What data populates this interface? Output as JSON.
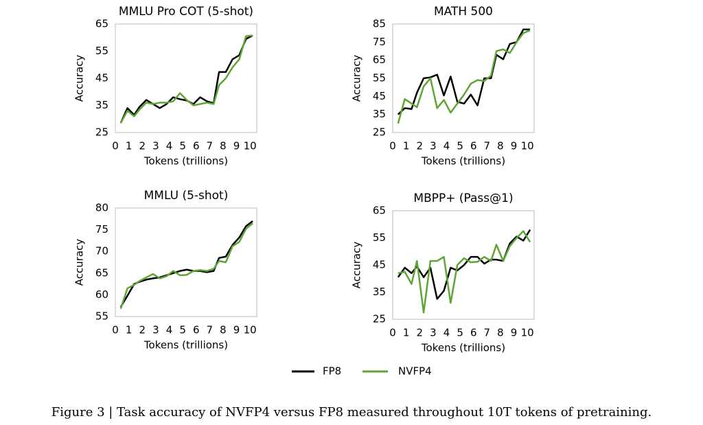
{
  "chart_data": [
    {
      "type": "line",
      "title": "MMLU Pro COT (5-shot)",
      "xlabel": "Tokens (trillions)",
      "ylabel": "Accuracy",
      "x": [
        0.4,
        0.9,
        1.4,
        1.8,
        2.3,
        2.8,
        3.3,
        3.8,
        4.3,
        4.8,
        5.3,
        5.8,
        6.3,
        6.8,
        7.3,
        7.7,
        8.2,
        8.7,
        9.2,
        9.7,
        10.2
      ],
      "series": [
        {
          "values": [
            28.5,
            34,
            31.5,
            34.5,
            37,
            35.5,
            34,
            35.5,
            38,
            37.3,
            36.8,
            35.5,
            38,
            36.5,
            35.8,
            47.3,
            47.3,
            52,
            53.5,
            59.5,
            60.8
          ]
        },
        {
          "values": [
            28.5,
            33,
            31,
            33.5,
            36,
            35.5,
            36,
            36,
            36.5,
            39.5,
            37,
            35,
            35.5,
            36,
            35.5,
            42.5,
            45,
            49,
            52,
            60.5,
            60.8
          ]
        }
      ],
      "xlim": [
        0,
        10.5
      ],
      "xticks": [
        0,
        1,
        2,
        3,
        4,
        5,
        6,
        7,
        8,
        9,
        10
      ],
      "ylim": [
        25,
        65
      ],
      "yticks": [
        25,
        35,
        45,
        55,
        65
      ]
    },
    {
      "type": "line",
      "title": "MATH 500",
      "xlabel": "Tokens (trillions)",
      "ylabel": "Accuracy",
      "x": [
        0.4,
        0.9,
        1.4,
        1.8,
        2.3,
        2.8,
        3.3,
        3.8,
        4.3,
        4.8,
        5.3,
        5.8,
        6.3,
        6.8,
        7.3,
        7.7,
        8.2,
        8.7,
        9.2,
        9.7,
        10.2
      ],
      "series": [
        {
          "values": [
            35,
            38.5,
            38,
            47,
            55,
            55.5,
            57,
            45.5,
            56,
            42,
            41,
            46,
            40,
            55,
            55,
            68,
            65.5,
            74,
            75,
            82,
            82
          ]
        },
        {
          "values": [
            30,
            43.5,
            41,
            39,
            50.5,
            55,
            38.5,
            43,
            36,
            41,
            46,
            52,
            54,
            53.5,
            56.5,
            70,
            71,
            69,
            75,
            80,
            81.5
          ]
        }
      ],
      "xlim": [
        0,
        10.5
      ],
      "xticks": [
        0,
        1,
        2,
        3,
        4,
        5,
        6,
        7,
        8,
        9,
        10
      ],
      "ylim": [
        25,
        85
      ],
      "yticks": [
        25,
        35,
        45,
        55,
        65,
        75,
        85
      ]
    },
    {
      "type": "line",
      "title": "MMLU (5-shot)",
      "xlabel": "Tokens (trillions)",
      "ylabel": "Accuracy",
      "x": [
        0.4,
        0.9,
        1.4,
        1.8,
        2.3,
        2.8,
        3.3,
        3.8,
        4.3,
        4.8,
        5.3,
        5.8,
        6.3,
        6.8,
        7.3,
        7.7,
        8.2,
        8.7,
        9.2,
        9.7,
        10.2
      ],
      "series": [
        {
          "values": [
            57.2,
            59.8,
            62.5,
            63,
            63.5,
            63.8,
            64,
            64.5,
            65,
            65.5,
            65.8,
            65.5,
            65.5,
            65.2,
            65.5,
            68.5,
            68.8,
            71.5,
            73.2,
            75.8,
            77
          ]
        },
        {
          "values": [
            56.8,
            61.5,
            62.3,
            63.2,
            64,
            64.8,
            63.8,
            64.3,
            65.5,
            64.5,
            64.6,
            65.5,
            65.7,
            65.5,
            66,
            67.8,
            67.5,
            71.2,
            72.2,
            75.2,
            76.5
          ]
        }
      ],
      "xlim": [
        0,
        10.5
      ],
      "xticks": [
        0,
        1,
        2,
        3,
        4,
        5,
        6,
        7,
        8,
        9,
        10
      ],
      "ylim": [
        55,
        80
      ],
      "yticks": [
        55,
        60,
        65,
        70,
        75,
        80
      ]
    },
    {
      "type": "line",
      "title": "MBPP+ (Pass@1)",
      "xlabel": "Tokens (trillions)",
      "ylabel": "Accuracy",
      "x": [
        0.4,
        0.9,
        1.4,
        1.8,
        2.3,
        2.8,
        3.3,
        3.8,
        4.3,
        4.8,
        5.3,
        5.8,
        6.3,
        6.8,
        7.3,
        7.7,
        8.2,
        8.7,
        9.2,
        9.7,
        10.2
      ],
      "series": [
        {
          "values": [
            40.5,
            44,
            42,
            44.5,
            40.5,
            44,
            32.5,
            35.5,
            44,
            43,
            45,
            48,
            48,
            45.5,
            47,
            47,
            46.5,
            53,
            55.5,
            54,
            58
          ]
        },
        {
          "values": [
            42,
            42.5,
            38,
            46.5,
            27.5,
            46.5,
            46.5,
            48,
            31,
            45,
            47.5,
            46,
            46.2,
            48,
            46.5,
            52.5,
            46.5,
            52,
            55,
            57.5,
            53.5
          ]
        }
      ],
      "xlim": [
        0,
        10.5
      ],
      "xticks": [
        0,
        1,
        2,
        3,
        4,
        5,
        6,
        7,
        8,
        9,
        10
      ],
      "ylim": [
        25,
        65
      ],
      "yticks": [
        25,
        35,
        45,
        55,
        65
      ]
    }
  ],
  "legend": [
    {
      "name": "FP8",
      "color": "#000000"
    },
    {
      "name": "NVFP4",
      "color": "#5ea534"
    }
  ],
  "caption": "Figure 3 | Task accuracy of NVFP4 versus FP8 measured throughout 10T tokens of pretraining."
}
